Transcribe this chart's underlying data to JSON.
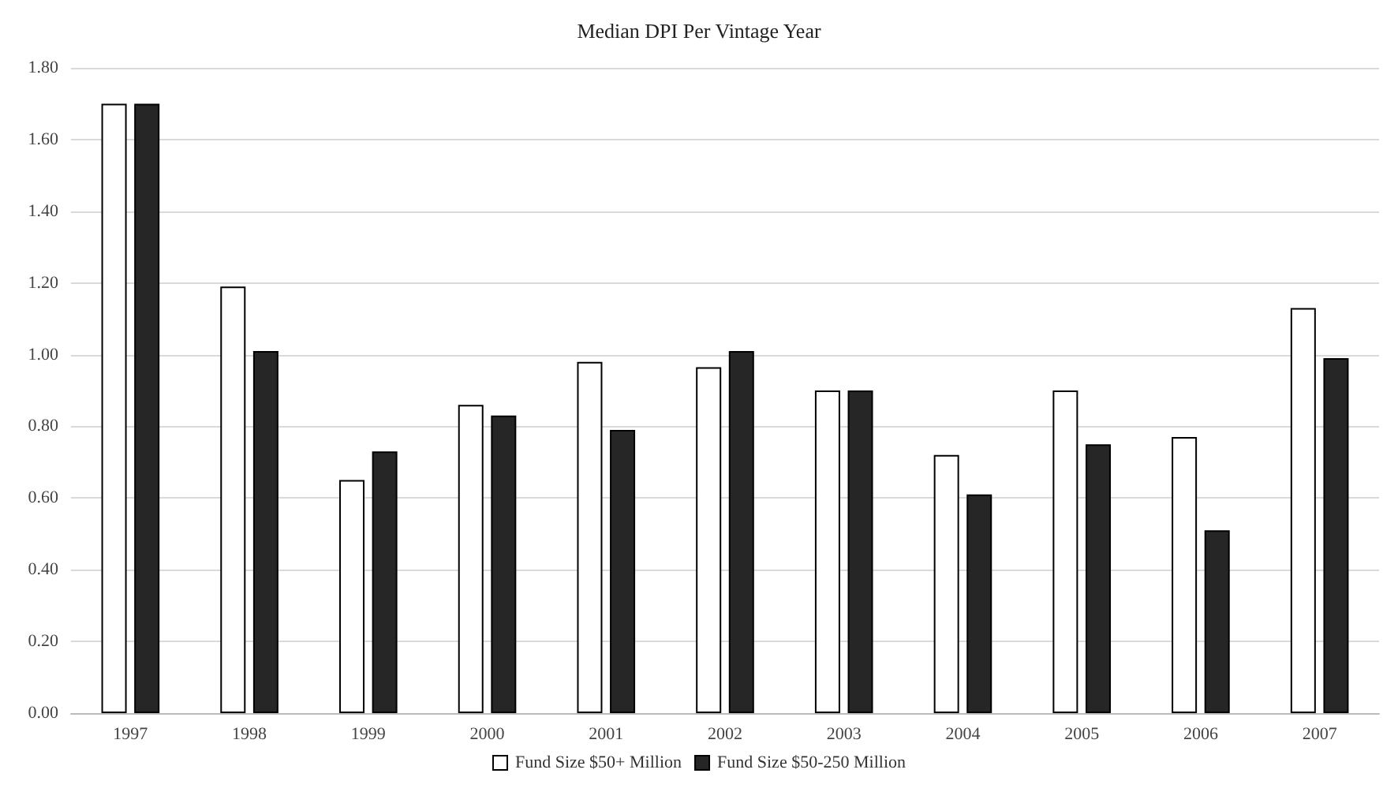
{
  "chart_data": {
    "type": "bar",
    "title": "Median DPI Per Vintage Year",
    "categories": [
      "1997",
      "1998",
      "1999",
      "2000",
      "2001",
      "2002",
      "2003",
      "2004",
      "2005",
      "2006",
      "2007"
    ],
    "series": [
      {
        "name": "Fund Size $50+ Million",
        "color": "#ffffff",
        "values": [
          1.7,
          1.19,
          0.65,
          0.86,
          0.98,
          0.965,
          0.9,
          0.72,
          0.9,
          0.77,
          1.13
        ]
      },
      {
        "name": "Fund Size $50-250 Million",
        "color": "#262626",
        "values": [
          1.7,
          1.01,
          0.73,
          0.83,
          0.79,
          1.01,
          0.9,
          0.61,
          0.75,
          0.51,
          0.99
        ]
      }
    ],
    "ylim": [
      0,
      1.8
    ],
    "yticks": [
      {
        "value": 0,
        "label": "0.00"
      },
      {
        "value": 0.2,
        "label": "0.20"
      },
      {
        "value": 0.4,
        "label": "0.40"
      },
      {
        "value": 0.6,
        "label": "0.60"
      },
      {
        "value": 0.8,
        "label": "0.80"
      },
      {
        "value": 1.0,
        "label": "1.00"
      },
      {
        "value": 1.2,
        "label": "1.20"
      },
      {
        "value": 1.4,
        "label": "1.40"
      },
      {
        "value": 1.6,
        "label": "1.60"
      },
      {
        "value": 1.8,
        "label": "1.80"
      }
    ],
    "grid": true,
    "legend": "bottom"
  }
}
